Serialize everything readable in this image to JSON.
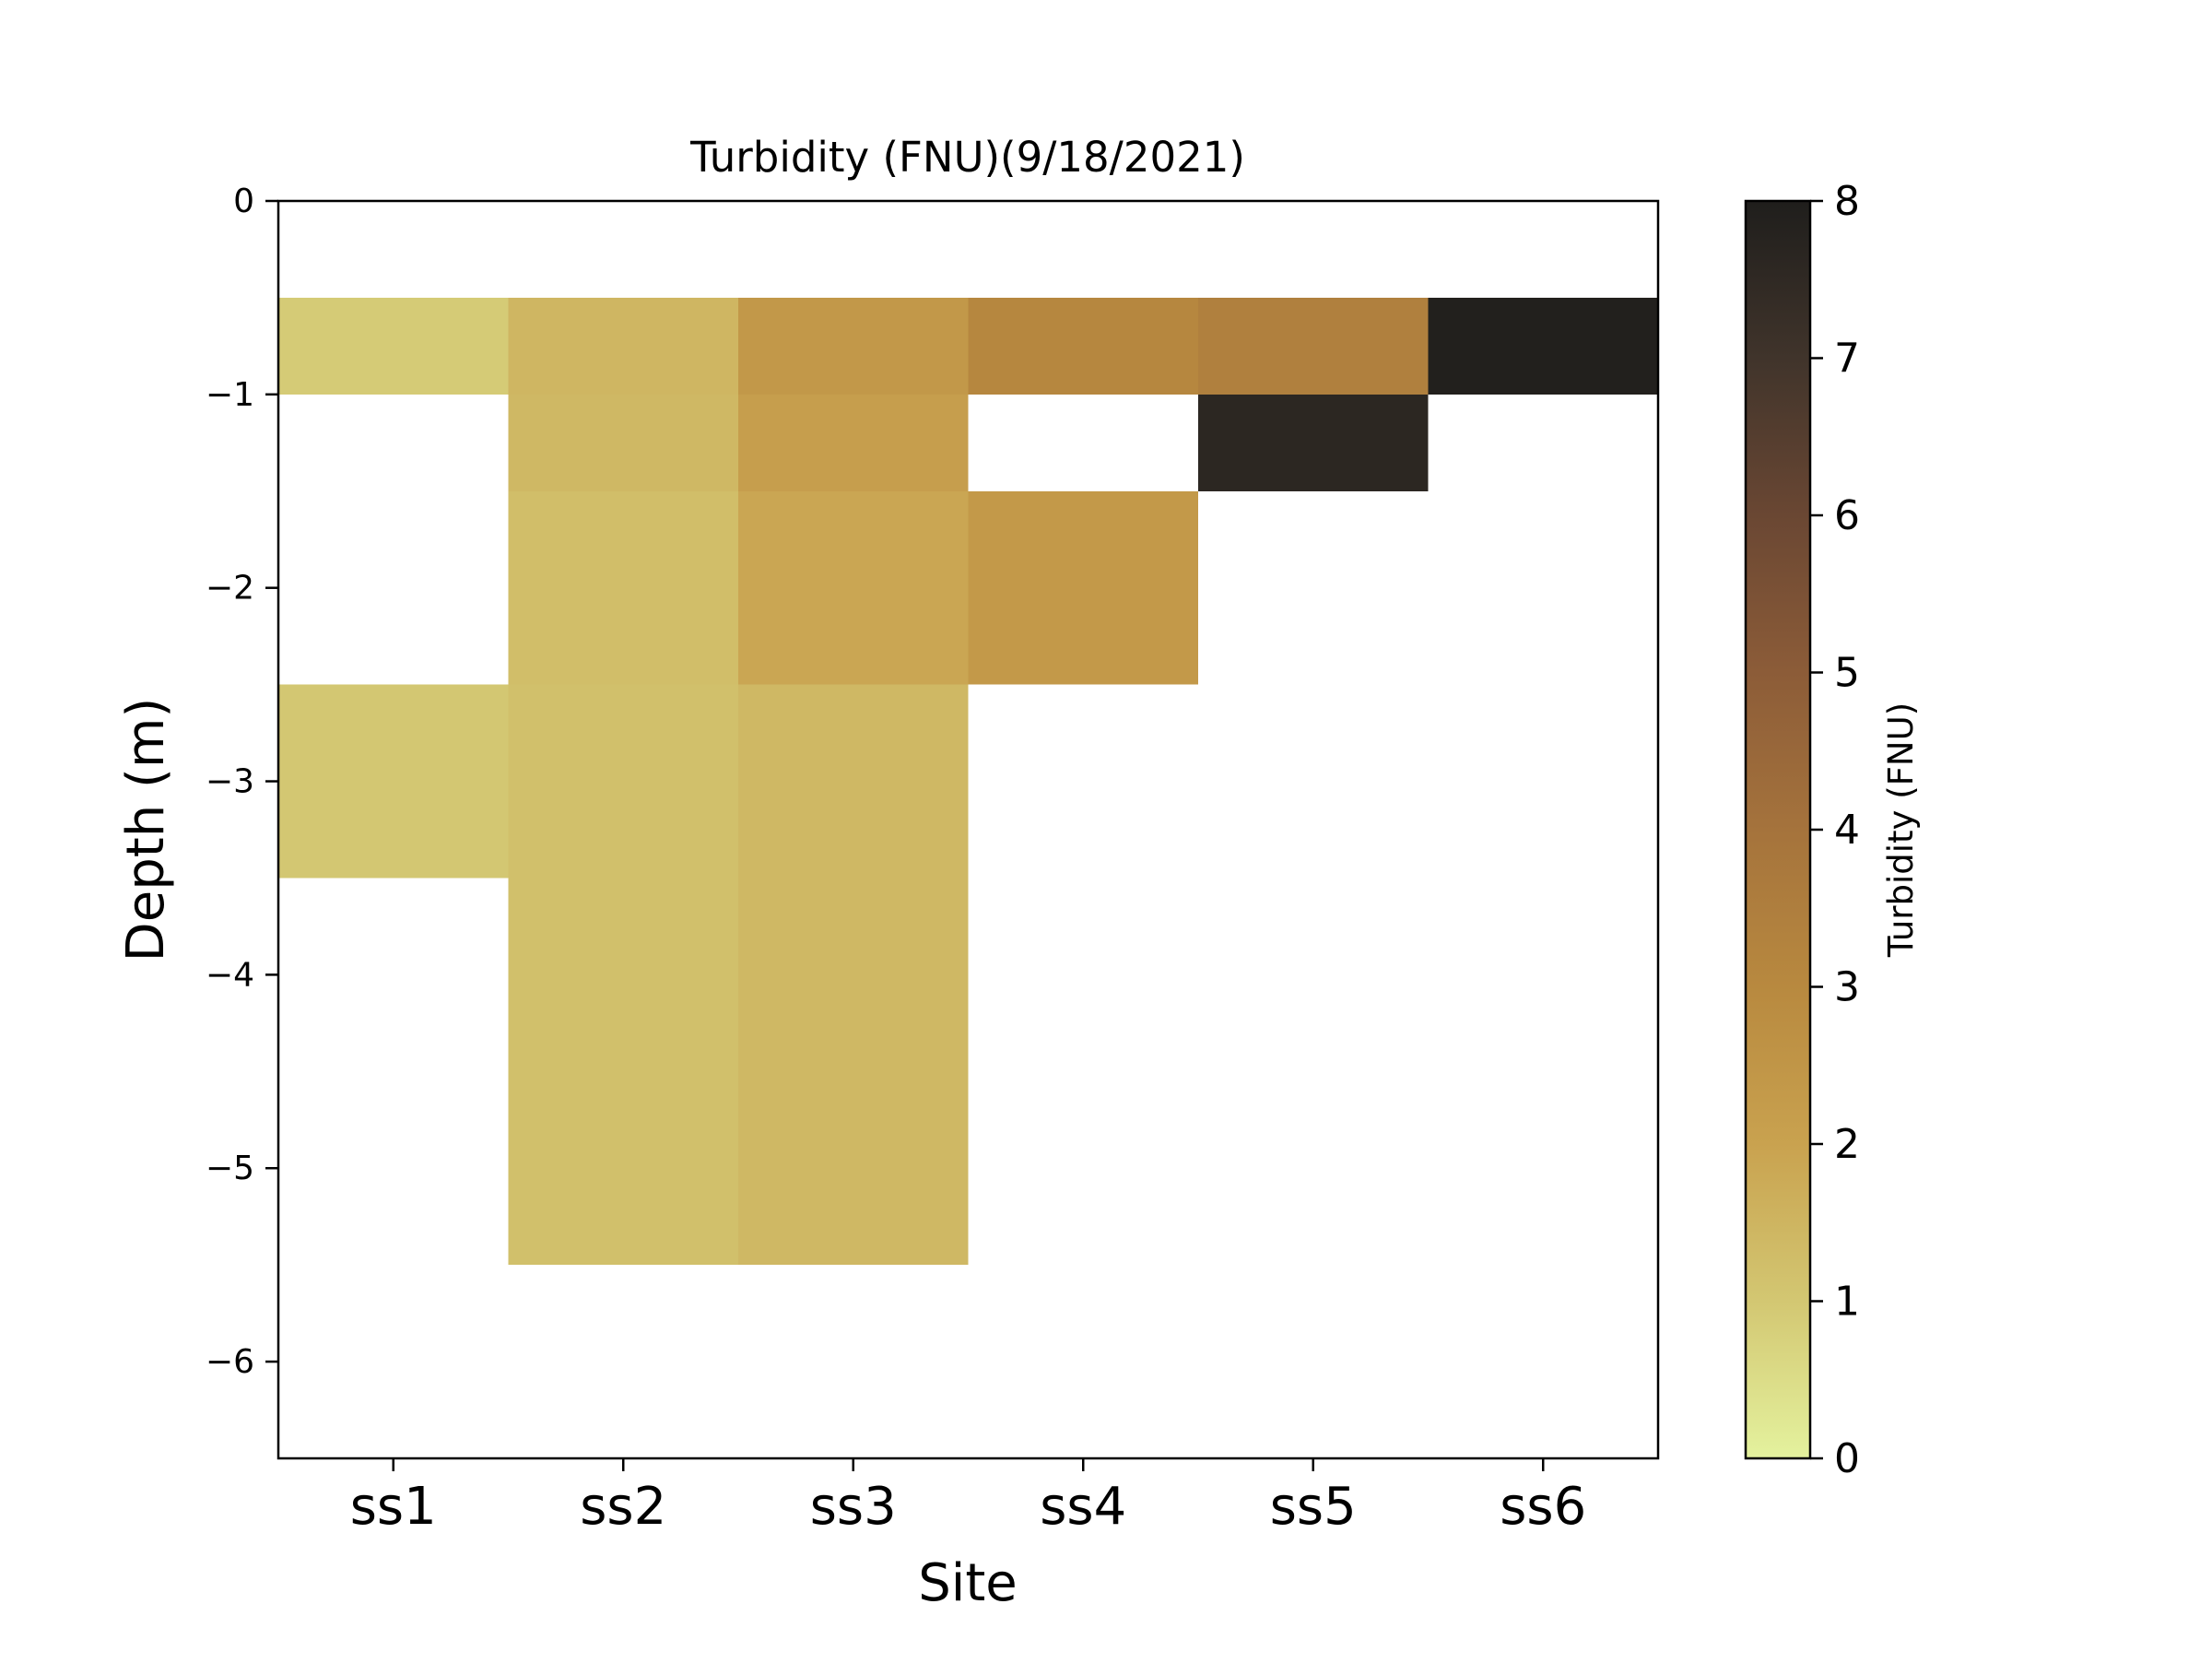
{
  "chart_data": {
    "type": "heatmap",
    "title": "Turbidity (FNU)(9/18/2021)",
    "xlabel": "Site",
    "ylabel": "Depth (m)",
    "categories": [
      "ss1",
      "ss2",
      "ss3",
      "ss4",
      "ss5",
      "ss6"
    ],
    "ylim": [
      -6.5,
      0
    ],
    "yticks": [
      0,
      -1,
      -2,
      -3,
      -4,
      -5,
      -6
    ],
    "ytick_labels": [
      "0",
      "−1",
      "−2",
      "−3",
      "−4",
      "−5",
      "−6"
    ],
    "cell_depth_bins": [
      {
        "top": -0.5,
        "bottom": -1.0
      },
      {
        "top": -1.0,
        "bottom": -1.5
      },
      {
        "top": -1.5,
        "bottom": -2.5
      },
      {
        "top": -2.5,
        "bottom": -3.5
      },
      {
        "top": -3.5,
        "bottom": -5.5
      }
    ],
    "cells": [
      {
        "site": "ss1",
        "depth_top": -0.5,
        "depth_bottom": -1.0,
        "value": 0.9
      },
      {
        "site": "ss2",
        "depth_top": -0.5,
        "depth_bottom": -1.0,
        "value": 1.45
      },
      {
        "site": "ss3",
        "depth_top": -0.5,
        "depth_bottom": -1.0,
        "value": 2.4
      },
      {
        "site": "ss4",
        "depth_top": -0.5,
        "depth_bottom": -1.0,
        "value": 3.1
      },
      {
        "site": "ss5",
        "depth_top": -0.5,
        "depth_bottom": -1.0,
        "value": 3.4
      },
      {
        "site": "ss6",
        "depth_top": -0.5,
        "depth_bottom": -1.0,
        "value": 7.9
      },
      {
        "site": "ss2",
        "depth_top": -1.0,
        "depth_bottom": -1.5,
        "value": 1.4
      },
      {
        "site": "ss3",
        "depth_top": -1.0,
        "depth_bottom": -1.5,
        "value": 2.15
      },
      {
        "site": "ss5",
        "depth_top": -1.0,
        "depth_bottom": -1.5,
        "value": 7.6
      },
      {
        "site": "ss2",
        "depth_top": -1.5,
        "depth_bottom": -2.5,
        "value": 1.25
      },
      {
        "site": "ss3",
        "depth_top": -1.5,
        "depth_bottom": -2.5,
        "value": 1.9
      },
      {
        "site": "ss4",
        "depth_top": -1.5,
        "depth_bottom": -2.5,
        "value": 2.35
      },
      {
        "site": "ss1",
        "depth_top": -2.5,
        "depth_bottom": -3.5,
        "value": 1.0
      },
      {
        "site": "ss2",
        "depth_top": -2.5,
        "depth_bottom": -3.5,
        "value": 1.2
      },
      {
        "site": "ss3",
        "depth_top": -2.5,
        "depth_bottom": -3.5,
        "value": 1.4
      },
      {
        "site": "ss2",
        "depth_top": -3.5,
        "depth_bottom": -5.5,
        "value": 1.2
      },
      {
        "site": "ss3",
        "depth_top": -3.5,
        "depth_bottom": -5.5,
        "value": 1.4
      }
    ],
    "colorbar": {
      "label": "Turbidity (FNU)",
      "min": 0,
      "max": 8,
      "ticks": [
        0,
        1,
        2,
        3,
        4,
        5,
        6,
        7,
        8
      ],
      "tick_labels": [
        "0",
        "1",
        "2",
        "3",
        "4",
        "5",
        "6",
        "7",
        "8"
      ],
      "stops": [
        {
          "value": 0,
          "color": "#e4f29e"
        },
        {
          "value": 1,
          "color": "#d3c772"
        },
        {
          "value": 2,
          "color": "#c9a24f"
        },
        {
          "value": 3,
          "color": "#b8893f"
        },
        {
          "value": 4,
          "color": "#a5733c"
        },
        {
          "value": 5,
          "color": "#8c5c38"
        },
        {
          "value": 6,
          "color": "#6a4733"
        },
        {
          "value": 7,
          "color": "#40342b"
        },
        {
          "value": 8,
          "color": "#1f1e1c"
        }
      ]
    },
    "grid": false,
    "background_color": "#ffffff"
  }
}
